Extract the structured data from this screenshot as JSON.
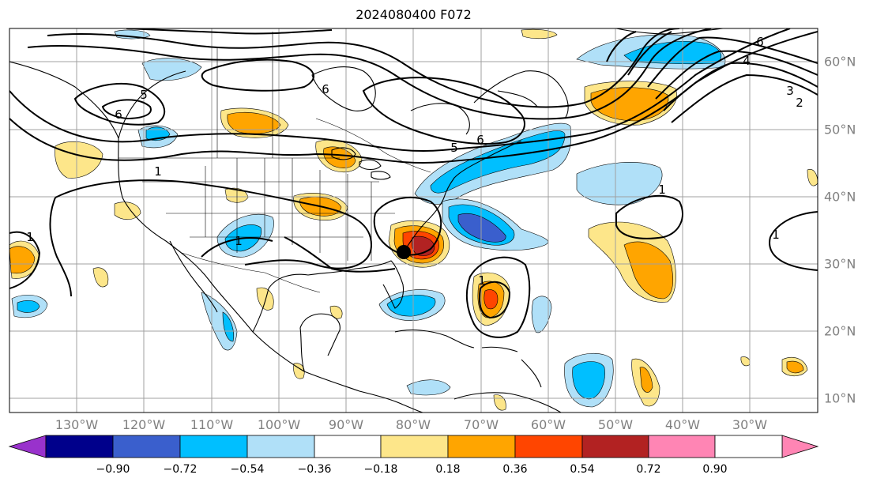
{
  "title": "2024080400 F072",
  "longitude_labels": [
    "130°W",
    "120°W",
    "110°W",
    "100°W",
    "90°W",
    "80°W",
    "70°W",
    "60°W",
    "50°W",
    "40°W",
    "30°W"
  ],
  "latitude_labels": [
    "60°N",
    "50°N",
    "40°N",
    "30°N",
    "20°N",
    "10°N"
  ],
  "contour_labels": [
    "5",
    "6",
    "1",
    "6",
    "6",
    "5",
    "6",
    "4",
    "3",
    "2",
    "1",
    "1",
    "1",
    "1",
    "1"
  ],
  "colorbar": {
    "tick_labels": [
      "−0.90",
      "−0.72",
      "−0.54",
      "−0.36",
      "−0.18",
      "0.18",
      "0.36",
      "0.54",
      "0.72",
      "0.90"
    ],
    "colors": [
      "#9932cc",
      "#00008b",
      "#3a5fcd",
      "#00bfff",
      "#b0e0f8",
      "#ffffff",
      "#fde68a",
      "#ffa500",
      "#ff4500",
      "#b22222",
      "#ff85b4"
    ],
    "extend": "both"
  },
  "colors": {
    "neg_light": "#b0e0f8",
    "neg_mid": "#00bfff",
    "neg_dark": "#3a5fcd",
    "pos_light": "#fde68a",
    "pos_mid": "#ffa500",
    "pos_dark": "#ff4500",
    "pos_darker": "#b22222",
    "grid": "#a0a0a0",
    "marker": "#000000"
  }
}
